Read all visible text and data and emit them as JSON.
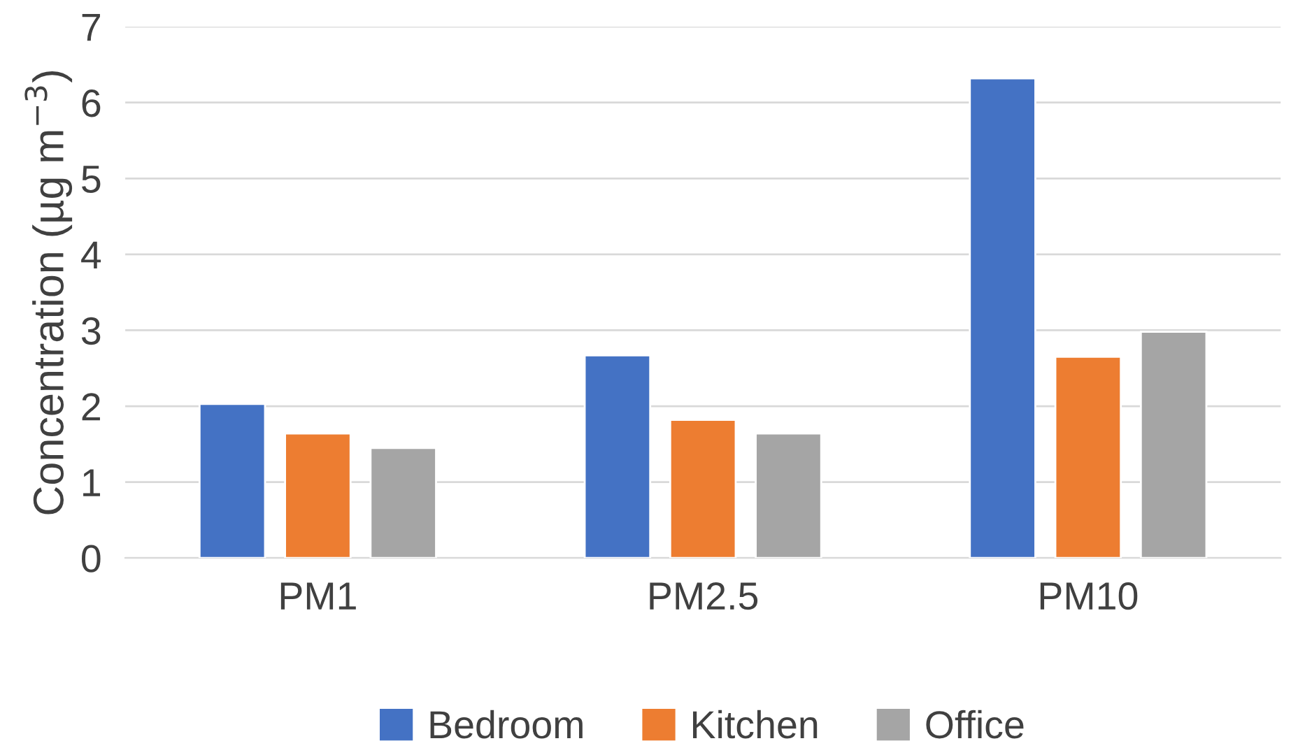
{
  "chart_data": {
    "type": "bar",
    "ylabel": "Concentration (µg m$^{−3}$)",
    "categories": [
      "PM1",
      "PM2.5",
      "PM10"
    ],
    "series": [
      {
        "name": "Bedroom",
        "color": "#4472c4",
        "values": [
          2.03,
          2.67,
          6.32
        ]
      },
      {
        "name": "Kitchen",
        "color": "#ed7d31",
        "values": [
          1.64,
          1.82,
          2.65
        ]
      },
      {
        "name": "Office",
        "color": "#a5a5a5",
        "values": [
          1.45,
          1.64,
          2.98
        ]
      }
    ],
    "ylim": [
      0,
      7
    ],
    "yticks": [
      0,
      1,
      2,
      3,
      4,
      5,
      6,
      7
    ],
    "grid": "y",
    "legend": "bottom"
  }
}
